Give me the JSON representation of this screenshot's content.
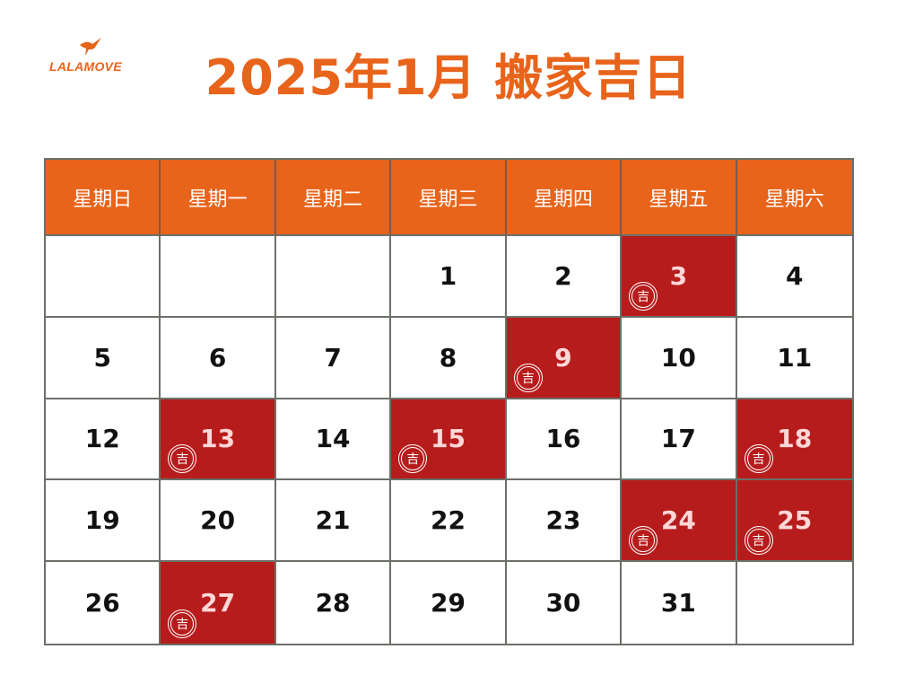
{
  "brand": {
    "logo_text": "LALAMOVE",
    "logo_icon": "hummingbird-icon"
  },
  "title": "2025年1月 搬家吉日",
  "colors": {
    "accent": "#e8641b",
    "lucky": "#b71c1c",
    "grid": "#6b7069"
  },
  "weekdays": [
    "星期日",
    "星期一",
    "星期二",
    "星期三",
    "星期四",
    "星期五",
    "星期六"
  ],
  "lucky_label": "吉",
  "weeks": [
    [
      {
        "day": ""
      },
      {
        "day": ""
      },
      {
        "day": ""
      },
      {
        "day": "1"
      },
      {
        "day": "2"
      },
      {
        "day": "3",
        "lucky": true
      },
      {
        "day": "4"
      }
    ],
    [
      {
        "day": "5"
      },
      {
        "day": "6"
      },
      {
        "day": "7"
      },
      {
        "day": "8"
      },
      {
        "day": "9",
        "lucky": true
      },
      {
        "day": "10"
      },
      {
        "day": "11"
      }
    ],
    [
      {
        "day": "12"
      },
      {
        "day": "13",
        "lucky": true
      },
      {
        "day": "14"
      },
      {
        "day": "15",
        "lucky": true
      },
      {
        "day": "16"
      },
      {
        "day": "17"
      },
      {
        "day": "18",
        "lucky": true
      }
    ],
    [
      {
        "day": "19"
      },
      {
        "day": "20"
      },
      {
        "day": "21"
      },
      {
        "day": "22"
      },
      {
        "day": "23"
      },
      {
        "day": "24",
        "lucky": true
      },
      {
        "day": "25",
        "lucky": true
      }
    ],
    [
      {
        "day": "26"
      },
      {
        "day": "27",
        "lucky": true
      },
      {
        "day": "28"
      },
      {
        "day": "29"
      },
      {
        "day": "30"
      },
      {
        "day": "31"
      },
      {
        "day": ""
      }
    ]
  ]
}
